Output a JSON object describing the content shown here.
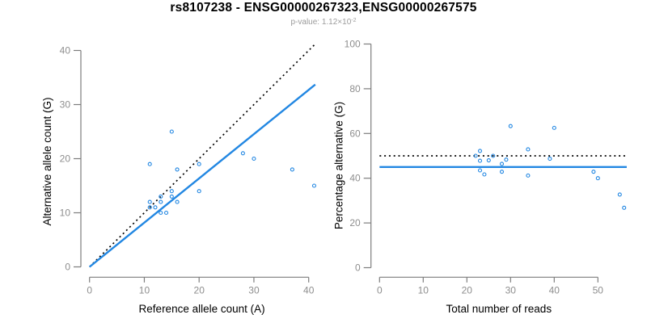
{
  "header": {
    "title": "rs8107238 - ENSG00000267323,ENSG00000267575",
    "subtitle_prefix": "p-value: 1.12×10",
    "subtitle_exponent": "-2"
  },
  "colors": {
    "accent_blue": "#2287e2",
    "line_black": "#000000",
    "axis_gray": "#7d7d7d",
    "tick_label_gray": "#8e8e8e"
  },
  "chart_data": [
    {
      "id": "allele-counts",
      "type": "scatter",
      "xlabel": "Reference allele count (A)",
      "ylabel": "Alternative allele count (G)",
      "xlim": [
        0,
        42
      ],
      "ylim": [
        0,
        42
      ],
      "xticks": [
        0,
        10,
        20,
        30,
        40
      ],
      "yticks": [
        0,
        10,
        20,
        30,
        40
      ],
      "grid": false,
      "legend": null,
      "points": [
        [
          11,
          11
        ],
        [
          11,
          12
        ],
        [
          12,
          11
        ],
        [
          13,
          10
        ],
        [
          13,
          12
        ],
        [
          13,
          13
        ],
        [
          14,
          10
        ],
        [
          15,
          13
        ],
        [
          15,
          14
        ],
        [
          16,
          12
        ],
        [
          11,
          19
        ],
        [
          15,
          25
        ],
        [
          16,
          18
        ],
        [
          20,
          14
        ],
        [
          20,
          19
        ],
        [
          28,
          21
        ],
        [
          30,
          20
        ],
        [
          37,
          18
        ],
        [
          41,
          15
        ]
      ],
      "lines": [
        {
          "name": "identity-line",
          "style": "dotted",
          "color_key": "black",
          "x1": 0,
          "y1": 0,
          "x2": 41,
          "y2": 41
        },
        {
          "name": "fit-line",
          "style": "solid",
          "color_key": "blue",
          "x1": 0,
          "y1": 0,
          "x2": 41.2,
          "y2": 33.7
        }
      ]
    },
    {
      "id": "percentage-vs-reads",
      "type": "scatter",
      "xlabel": "Total number of reads",
      "ylabel": "Percentage alternative (G)",
      "xlim": [
        0,
        56.6
      ],
      "ylim": [
        0,
        100
      ],
      "xticks": [
        0,
        10,
        20,
        30,
        40,
        50
      ],
      "yticks": [
        0,
        20,
        40,
        60,
        80,
        100
      ],
      "grid": false,
      "legend": null,
      "points": [
        [
          22,
          50
        ],
        [
          23,
          43.5
        ],
        [
          23,
          47.8
        ],
        [
          23,
          52.2
        ],
        [
          24,
          41.7
        ],
        [
          25,
          48
        ],
        [
          26,
          50
        ],
        [
          28,
          42.9
        ],
        [
          28,
          46.4
        ],
        [
          29,
          48.3
        ],
        [
          30,
          63.3
        ],
        [
          34,
          41.2
        ],
        [
          34,
          52.9
        ],
        [
          39,
          48.7
        ],
        [
          40,
          62.5
        ],
        [
          49,
          42.9
        ],
        [
          50,
          40
        ],
        [
          55,
          32.7
        ],
        [
          56,
          26.8
        ]
      ],
      "lines": [
        {
          "name": "null-expectation-line",
          "style": "dotted",
          "color_key": "black",
          "x1": 0,
          "y1": 50,
          "x2": 56.6,
          "y2": 50
        },
        {
          "name": "fit-line",
          "style": "solid",
          "color_key": "blue",
          "x1": 0,
          "y1": 45,
          "x2": 56.6,
          "y2": 45
        }
      ]
    }
  ]
}
